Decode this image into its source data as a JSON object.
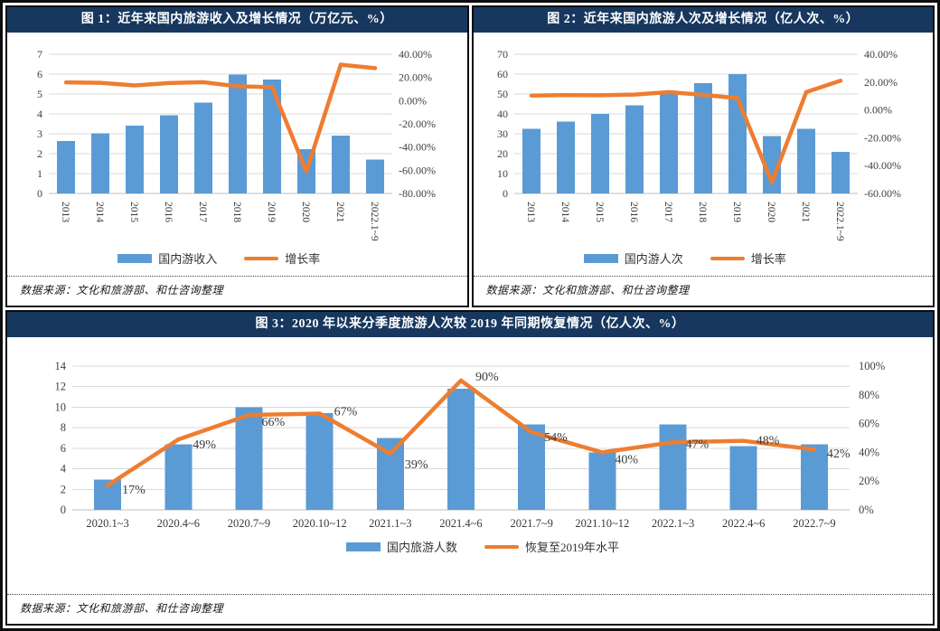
{
  "colors": {
    "navy": "#17375E",
    "bar_blue": "#5B9BD5",
    "line_orange": "#ED7D31",
    "grid": "#D9D9D9",
    "axis_line": "#BFBFBF",
    "axis_text": "#404040",
    "label_text": "#3a3a3a"
  },
  "panels": [
    {
      "title": "图 1：近年来国内旅游收入及增长情况（万亿元、%）",
      "source": "数据来源：文化和旅游部、和仕咨询整理"
    },
    {
      "title": "图 2：近年来国内旅游人次及增长情况（亿人次、%）",
      "source": "数据来源：文化和旅游部、和仕咨询整理"
    },
    {
      "title": "图 3：2020 年以来分季度旅游人次较 2019 年同期恢复情况（亿人次、%）",
      "source": "数据来源：文化和旅游部、和仕咨询整理"
    }
  ],
  "chart_data": [
    {
      "type": "bar",
      "title": "图 1：近年来国内旅游收入及增长情况（万亿元、%）",
      "categories": [
        "2013",
        "2014",
        "2015",
        "2016",
        "2017",
        "2018",
        "2019",
        "2020",
        "2021",
        "2022.1~9"
      ],
      "series": [
        {
          "name": "国内游收入",
          "kind": "bar",
          "axis": "left",
          "values": [
            2.63,
            3.03,
            3.42,
            3.94,
            4.57,
            5.97,
            5.73,
            2.23,
            2.92,
            1.71
          ]
        },
        {
          "name": "增长率",
          "kind": "line",
          "axis": "right",
          "values": [
            15.7,
            15.4,
            13.1,
            15.2,
            15.9,
            12.3,
            11.7,
            -61.1,
            31.0,
            28.0
          ]
        }
      ],
      "left_axis": {
        "range": [
          0,
          7
        ],
        "ticks": [
          "7",
          "6",
          "5",
          "4",
          "3",
          "2",
          "1",
          "0"
        ]
      },
      "right_axis": {
        "range": [
          -80,
          40
        ],
        "ticks": [
          "40.00%",
          "20.00%",
          "0.00%",
          "-20.00%",
          "-40.00%",
          "-60.00%",
          "-80.00%"
        ]
      },
      "x_label_rotation": 90,
      "grid": true,
      "legend_position": "bottom"
    },
    {
      "type": "bar",
      "title": "图 2：近年来国内旅游人次及增长情况（亿人次、%）",
      "categories": [
        "2013",
        "2014",
        "2015",
        "2016",
        "2017",
        "2018",
        "2019",
        "2020",
        "2021",
        "2022.1~9"
      ],
      "series": [
        {
          "name": "国内游人次",
          "kind": "bar",
          "axis": "left",
          "values": [
            32.6,
            36.1,
            40.0,
            44.4,
            50.0,
            55.4,
            60.1,
            28.8,
            32.5,
            20.9
          ]
        },
        {
          "name": "增长率",
          "kind": "line",
          "axis": "right",
          "values": [
            10.3,
            10.7,
            10.5,
            11.0,
            12.8,
            10.8,
            8.4,
            -52.1,
            12.8,
            21.0
          ]
        }
      ],
      "left_axis": {
        "range": [
          0,
          70
        ],
        "ticks": [
          "70",
          "60",
          "50",
          "40",
          "30",
          "20",
          "10",
          "0"
        ]
      },
      "right_axis": {
        "range": [
          -60,
          40
        ],
        "ticks": [
          "40.00%",
          "20.00%",
          "0.00%",
          "-20.00%",
          "-40.00%",
          "-60.00%"
        ]
      },
      "x_label_rotation": 90,
      "grid": true,
      "legend_position": "bottom"
    },
    {
      "type": "bar",
      "title": "图 3：2020 年以来分季度旅游人次较 2019 年同期恢复情况（亿人次、%）",
      "categories": [
        "2020.1~3",
        "2020.4~6",
        "2020.7~9",
        "2020.10~12",
        "2021.1~3",
        "2021.4~6",
        "2021.7~9",
        "2021.10~12",
        "2022.1~3",
        "2022.4~6",
        "2022.7~9"
      ],
      "series": [
        {
          "name": "国内旅游人数",
          "kind": "bar",
          "axis": "left",
          "values": [
            2.95,
            6.4,
            10.0,
            9.4,
            7.0,
            11.8,
            8.3,
            5.6,
            8.3,
            6.2,
            6.4
          ]
        },
        {
          "name": "恢复至2019年水平",
          "kind": "line",
          "axis": "right",
          "values": [
            17,
            49,
            66,
            67,
            39,
            90,
            54,
            40,
            47,
            48,
            42
          ],
          "data_labels": [
            "17%",
            "49%",
            "66%",
            "67%",
            "39%",
            "90%",
            "54%",
            "40%",
            "47%",
            "48%",
            "42%"
          ],
          "label_offsets": [
            [
              16,
              5
            ],
            [
              16,
              6
            ],
            [
              14,
              8
            ],
            [
              16,
              -2
            ],
            [
              16,
              12
            ],
            [
              16,
              -4
            ],
            [
              14,
              6
            ],
            [
              14,
              8
            ],
            [
              14,
              2
            ],
            [
              14,
              0
            ],
            [
              14,
              5
            ]
          ]
        }
      ],
      "left_axis": {
        "range": [
          0,
          14
        ],
        "ticks": [
          "14",
          "12",
          "10",
          "8",
          "6",
          "4",
          "2",
          "0"
        ]
      },
      "right_axis": {
        "range": [
          0,
          100
        ],
        "ticks": [
          "100%",
          "80%",
          "60%",
          "40%",
          "20%",
          "0%"
        ]
      },
      "x_label_rotation": 0,
      "grid": true,
      "legend_position": "bottom"
    }
  ]
}
